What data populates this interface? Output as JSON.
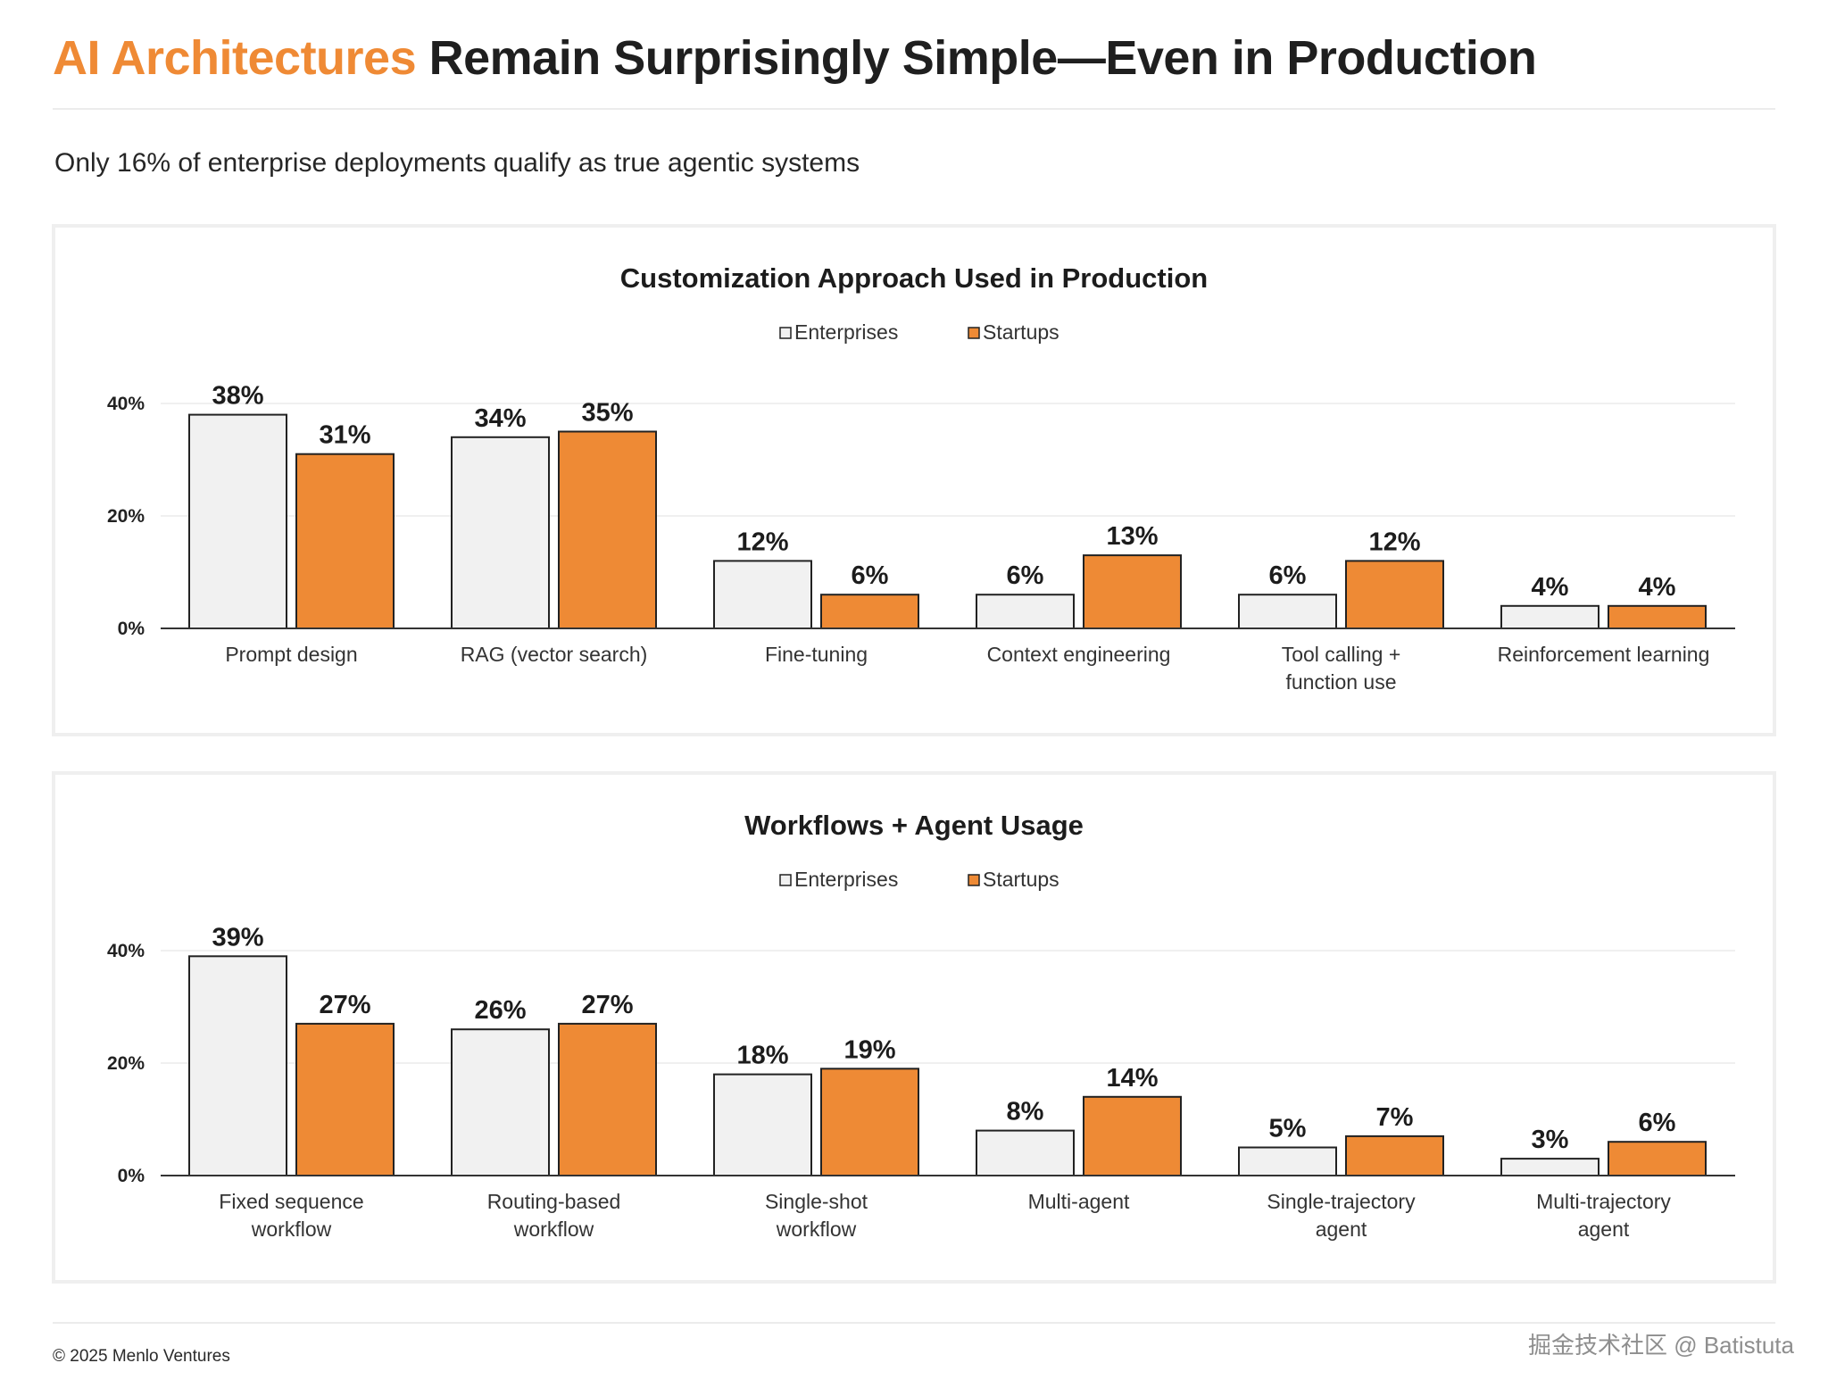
{
  "header": {
    "title_accent": "AI Architectures",
    "title_rest": "Remain Surprisingly Simple—Even in Production",
    "subtitle": "Only 16% of enterprise deployments qualify as true agentic systems"
  },
  "footer": {
    "copyright": "© 2025 Menlo Ventures",
    "watermark": "掘金技术社区 @ Batistuta"
  },
  "colors": {
    "accent": "#EF8A35",
    "enterprise_fill": "#F1F1F1",
    "startup_fill": "#EE8A35",
    "bar_stroke": "#222222",
    "grid": "#ececec"
  },
  "chart_data": [
    {
      "type": "bar",
      "title": "Customization Approach Used in Production",
      "categories": [
        [
          "Prompt design"
        ],
        [
          "RAG (vector search)"
        ],
        [
          "Fine-tuning"
        ],
        [
          "Context engineering"
        ],
        [
          "Tool calling +",
          "function use"
        ],
        [
          "Reinforcement learning"
        ]
      ],
      "series": [
        {
          "name": "Enterprises",
          "values": [
            38,
            34,
            12,
            6,
            6,
            4
          ]
        },
        {
          "name": "Startups",
          "values": [
            31,
            35,
            6,
            13,
            12,
            4
          ]
        }
      ],
      "value_suffix": "%",
      "yticks": [
        "0%",
        "20%",
        "40%"
      ],
      "ylim": [
        0,
        40
      ],
      "grid": true,
      "legend": "top-center"
    },
    {
      "type": "bar",
      "title": "Workflows + Agent Usage",
      "categories": [
        [
          "Fixed sequence",
          "workflow"
        ],
        [
          "Routing-based",
          "workflow"
        ],
        [
          "Single-shot",
          "workflow"
        ],
        [
          "Multi-agent"
        ],
        [
          "Single-trajectory",
          "agent"
        ],
        [
          "Multi-trajectory",
          "agent"
        ]
      ],
      "series": [
        {
          "name": "Enterprises",
          "values": [
            39,
            26,
            18,
            8,
            5,
            3
          ]
        },
        {
          "name": "Startups",
          "values": [
            27,
            27,
            19,
            14,
            7,
            6
          ]
        }
      ],
      "value_suffix": "%",
      "yticks": [
        "0%",
        "20%",
        "40%"
      ],
      "ylim": [
        0,
        40
      ],
      "grid": true,
      "legend": "top-center"
    }
  ]
}
